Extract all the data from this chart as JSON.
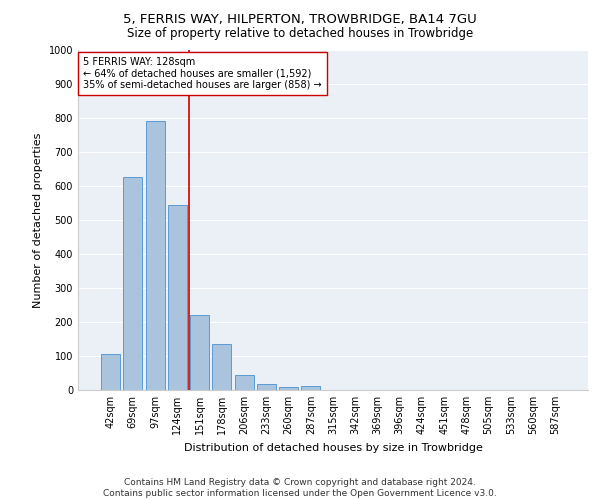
{
  "title": "5, FERRIS WAY, HILPERTON, TROWBRIDGE, BA14 7GU",
  "subtitle": "Size of property relative to detached houses in Trowbridge",
  "xlabel": "Distribution of detached houses by size in Trowbridge",
  "ylabel": "Number of detached properties",
  "bar_labels": [
    "42sqm",
    "69sqm",
    "97sqm",
    "124sqm",
    "151sqm",
    "178sqm",
    "206sqm",
    "233sqm",
    "260sqm",
    "287sqm",
    "315sqm",
    "342sqm",
    "369sqm",
    "396sqm",
    "424sqm",
    "451sqm",
    "478sqm",
    "505sqm",
    "533sqm",
    "560sqm",
    "587sqm"
  ],
  "bar_values": [
    105,
    625,
    790,
    545,
    220,
    135,
    43,
    18,
    8,
    12,
    0,
    0,
    0,
    0,
    0,
    0,
    0,
    0,
    0,
    0,
    0
  ],
  "bar_color": "#aac4dd",
  "bar_edgecolor": "#5b9bd5",
  "vline_x": 3.52,
  "vline_color": "#cc0000",
  "annotation_text": "5 FERRIS WAY: 128sqm\n← 64% of detached houses are smaller (1,592)\n35% of semi-detached houses are larger (858) →",
  "annotation_box_color": "#ffffff",
  "annotation_box_edgecolor": "#cc0000",
  "ylim": [
    0,
    1000
  ],
  "yticks": [
    0,
    100,
    200,
    300,
    400,
    500,
    600,
    700,
    800,
    900,
    1000
  ],
  "background_color": "#eaf0f6",
  "footer": "Contains HM Land Registry data © Crown copyright and database right 2024.\nContains public sector information licensed under the Open Government Licence v3.0.",
  "title_fontsize": 9.5,
  "subtitle_fontsize": 8.5,
  "xlabel_fontsize": 8,
  "ylabel_fontsize": 8,
  "tick_fontsize": 7,
  "annotation_fontsize": 7,
  "footer_fontsize": 6.5
}
